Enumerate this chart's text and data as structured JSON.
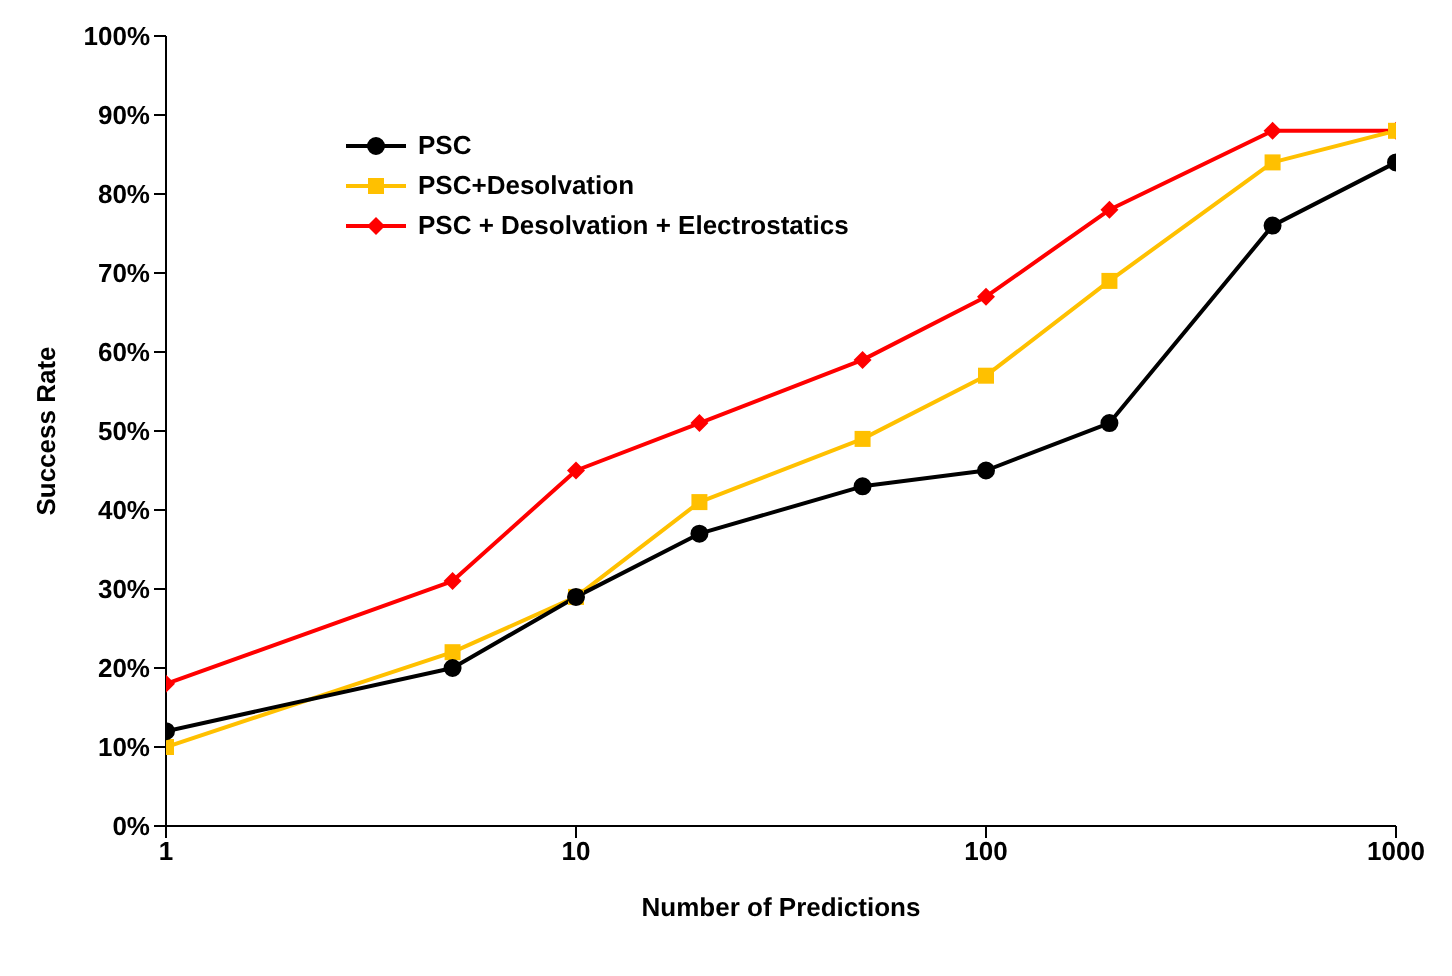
{
  "chart_data": {
    "type": "line",
    "xlabel": "Number of Predictions",
    "ylabel": "Success Rate",
    "log": "x",
    "xlim": [
      1,
      1000
    ],
    "xticks": [
      1,
      10,
      100,
      1000
    ],
    "ylim": [
      0,
      100
    ],
    "yticks": [
      {
        "value": 0,
        "label": "0%"
      },
      {
        "value": 10,
        "label": "10%"
      },
      {
        "value": 20,
        "label": "20%"
      },
      {
        "value": 30,
        "label": "30%"
      },
      {
        "value": 40,
        "label": "40%"
      },
      {
        "value": 50,
        "label": "50%"
      },
      {
        "value": 60,
        "label": "60%"
      },
      {
        "value": 70,
        "label": "70%"
      },
      {
        "value": 80,
        "label": "80%"
      },
      {
        "value": 90,
        "label": "90%"
      },
      {
        "value": 100,
        "label": "100%"
      }
    ],
    "x": [
      1,
      5,
      10,
      20,
      50,
      100,
      200,
      500,
      1000
    ],
    "grid": false,
    "legend": "top left",
    "line_style": "solid",
    "series": [
      {
        "name": "PSC",
        "color": "#000000",
        "marker": "circle",
        "values": [
          12,
          20,
          29,
          37,
          43,
          45,
          51,
          76,
          84
        ]
      },
      {
        "name": "PSC+Desolvation",
        "color": "#ffc000",
        "marker": "square",
        "values": [
          10,
          22,
          29,
          41,
          49,
          57,
          69,
          84,
          88
        ]
      },
      {
        "name": "PSC + Desolvation + Electrostatics",
        "color": "#ff0000",
        "marker": "diamond",
        "values": [
          18,
          31,
          45,
          51,
          59,
          67,
          78,
          88,
          88
        ]
      }
    ]
  }
}
